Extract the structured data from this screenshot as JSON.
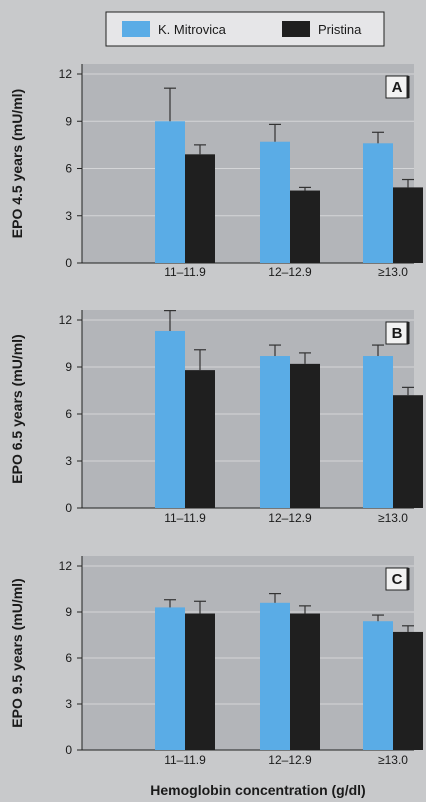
{
  "legend": {
    "items": [
      {
        "name": "K. Mitrovica",
        "color": "#5aace6"
      },
      {
        "name": "Pristina",
        "color": "#1f1f1f"
      }
    ]
  },
  "xlabel": "Hemoglobin concentration (g/dl)",
  "chart_data": [
    {
      "type": "bar",
      "panel": "A",
      "ylabel": "EPO 4.5 years (mU/ml)",
      "categories": [
        "11–11.9",
        "12–12.9",
        "≥13.0"
      ],
      "ylim": [
        0,
        12
      ],
      "yticks": [
        "0",
        "3",
        "6",
        "9",
        "12"
      ],
      "grid": true,
      "series": [
        {
          "name": "K. Mitrovica",
          "values": [
            9.0,
            7.7,
            7.6
          ],
          "errors": [
            2.1,
            1.1,
            0.7
          ]
        },
        {
          "name": "Pristina",
          "values": [
            6.9,
            4.6,
            4.8
          ],
          "errors": [
            0.6,
            0.2,
            0.5
          ]
        }
      ]
    },
    {
      "type": "bar",
      "panel": "B",
      "ylabel": "EPO 6.5 years (mU/ml)",
      "categories": [
        "11–11.9",
        "12–12.9",
        "≥13.0"
      ],
      "ylim": [
        0,
        12
      ],
      "yticks": [
        "0",
        "3",
        "6",
        "9",
        "12"
      ],
      "grid": true,
      "series": [
        {
          "name": "K. Mitrovica",
          "values": [
            11.3,
            9.7,
            9.7
          ],
          "errors": [
            1.3,
            0.7,
            0.7
          ]
        },
        {
          "name": "Pristina",
          "values": [
            8.8,
            9.2,
            7.2
          ],
          "errors": [
            1.3,
            0.7,
            0.5
          ]
        }
      ]
    },
    {
      "type": "bar",
      "panel": "C",
      "ylabel": "EPO 9.5 years (mU/ml)",
      "categories": [
        "11–11.9",
        "12–12.9",
        "≥13.0"
      ],
      "ylim": [
        0,
        12
      ],
      "yticks": [
        "0",
        "3",
        "6",
        "9",
        "12"
      ],
      "grid": true,
      "series": [
        {
          "name": "K. Mitrovica",
          "values": [
            9.3,
            9.6,
            8.4
          ],
          "errors": [
            0.5,
            0.6,
            0.4
          ]
        },
        {
          "name": "Pristina",
          "values": [
            8.9,
            8.9,
            7.7
          ],
          "errors": [
            0.8,
            0.5,
            0.4
          ]
        }
      ]
    }
  ]
}
